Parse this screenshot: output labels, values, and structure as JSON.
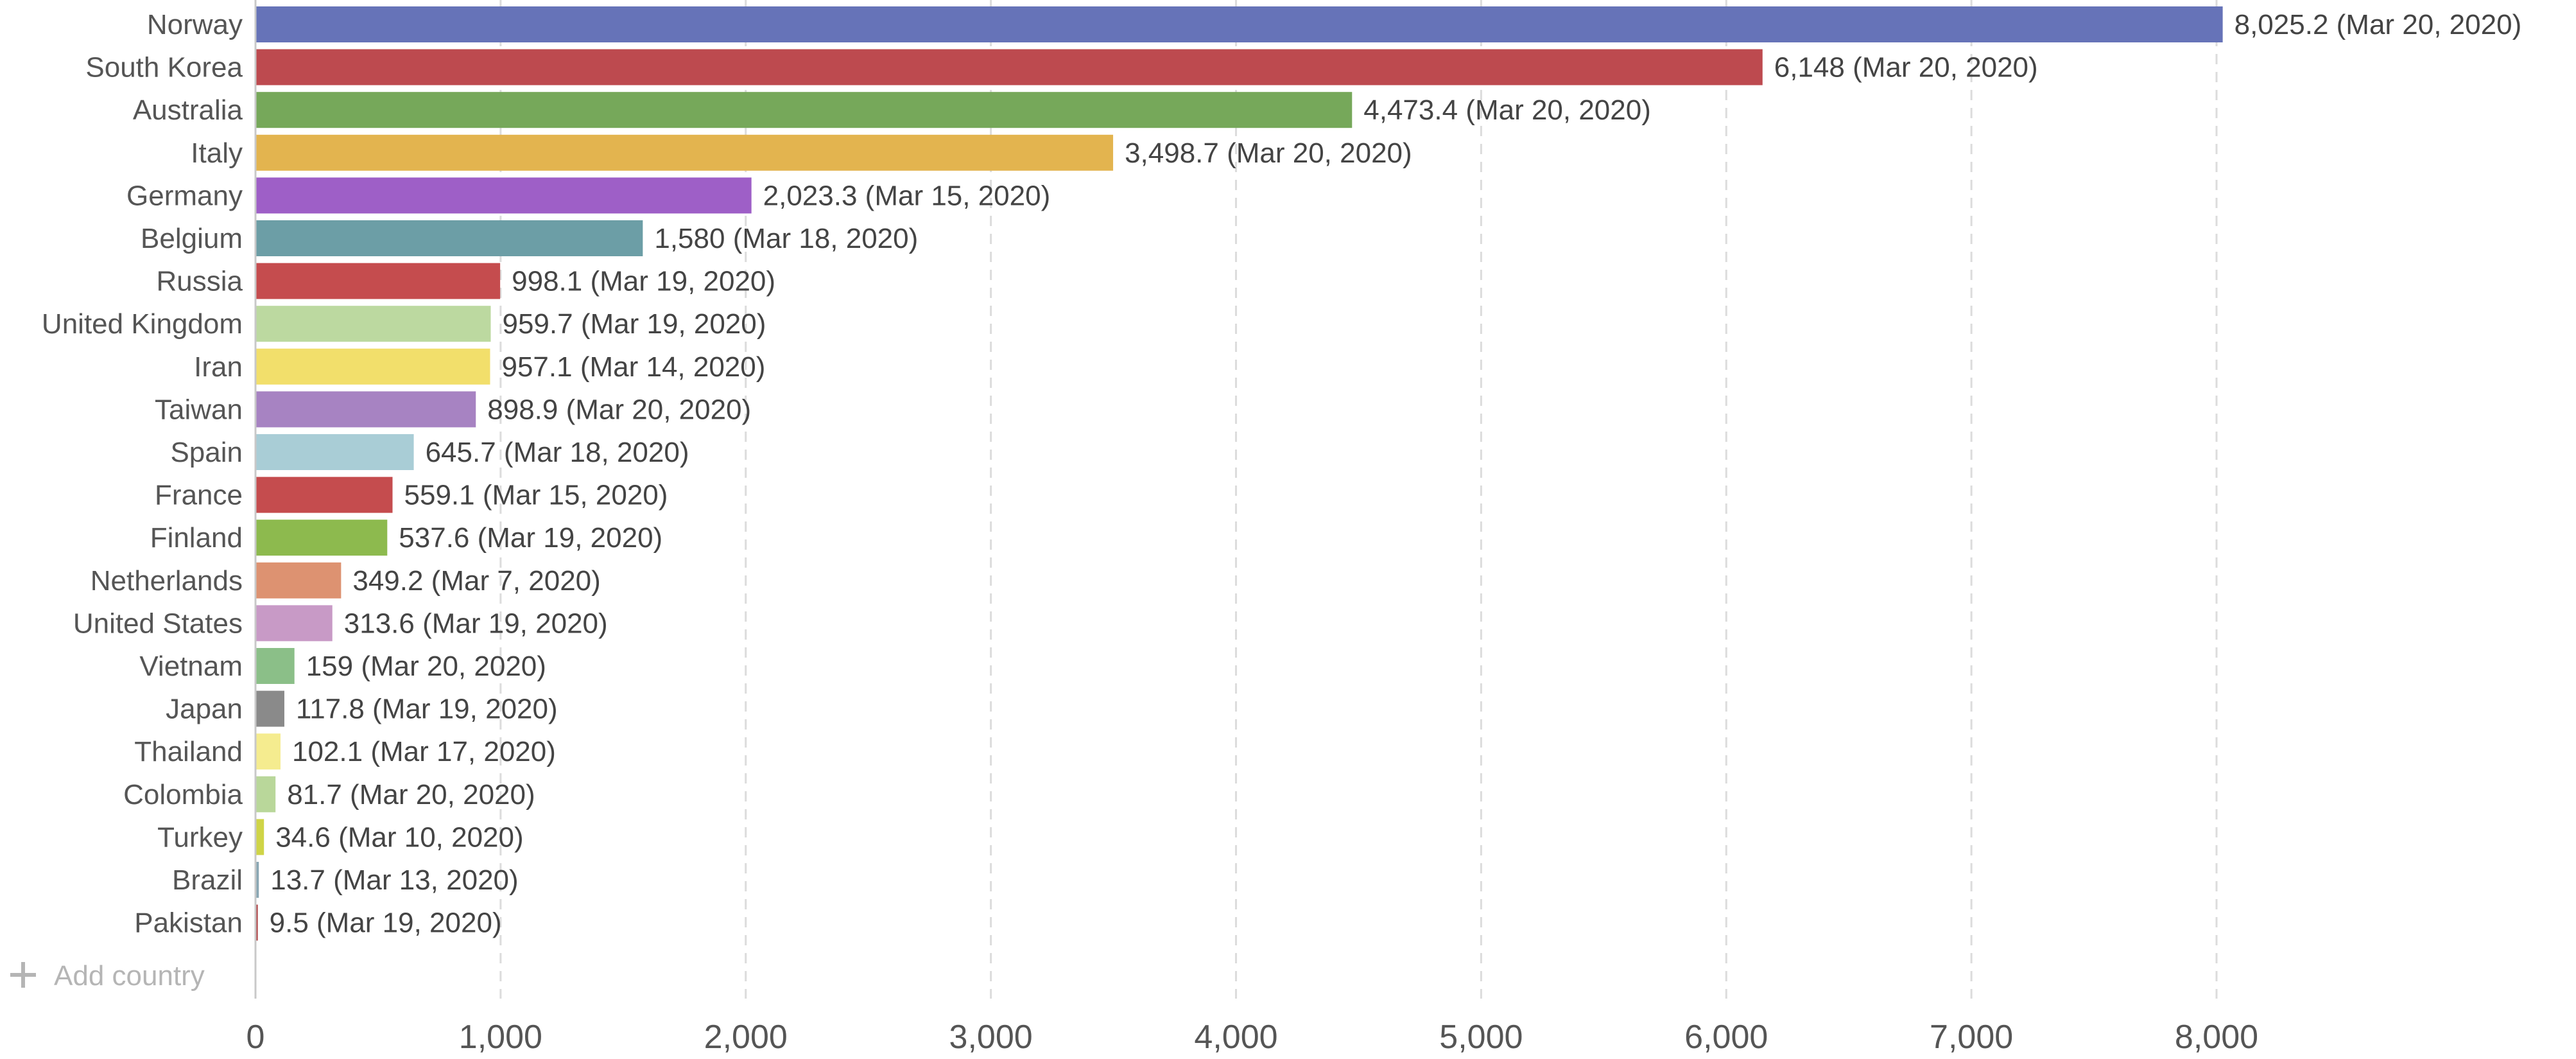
{
  "chart_data": {
    "type": "bar",
    "orientation": "horizontal",
    "categories": [
      "Norway",
      "South Korea",
      "Australia",
      "Italy",
      "Germany",
      "Belgium",
      "Russia",
      "United Kingdom",
      "Iran",
      "Taiwan",
      "Spain",
      "France",
      "Finland",
      "Netherlands",
      "United States",
      "Vietnam",
      "Japan",
      "Thailand",
      "Colombia",
      "Turkey",
      "Brazil",
      "Pakistan"
    ],
    "values": [
      8025.2,
      6148,
      4473.4,
      3498.7,
      2023.3,
      1580,
      998.1,
      959.7,
      957.1,
      898.9,
      645.7,
      559.1,
      537.6,
      349.2,
      313.6,
      159,
      117.8,
      102.1,
      81.7,
      34.6,
      13.7,
      9.5
    ],
    "value_labels": [
      "8,025.2 (Mar 20, 2020)",
      "6,148 (Mar 20, 2020)",
      "4,473.4 (Mar 20, 2020)",
      "3,498.7 (Mar 20, 2020)",
      "2,023.3 (Mar 15, 2020)",
      "1,580 (Mar 18, 2020)",
      "998.1 (Mar 19, 2020)",
      "959.7 (Mar 19, 2020)",
      "957.1 (Mar 14, 2020)",
      "898.9 (Mar 20, 2020)",
      "645.7 (Mar 18, 2020)",
      "559.1 (Mar 15, 2020)",
      "537.6 (Mar 19, 2020)",
      "349.2 (Mar 7, 2020)",
      "313.6 (Mar 19, 2020)",
      "159 (Mar 20, 2020)",
      "117.8 (Mar 19, 2020)",
      "102.1 (Mar 17, 2020)",
      "81.7 (Mar 20, 2020)",
      "34.6 (Mar 10, 2020)",
      "13.7 (Mar 13, 2020)",
      "9.5 (Mar 19, 2020)"
    ],
    "colors": [
      "#6673b8",
      "#bd4a4f",
      "#76a85a",
      "#e3b44f",
      "#9e5fc7",
      "#6c9ea6",
      "#c54c4e",
      "#bcd9a0",
      "#f2df6b",
      "#a783c2",
      "#a9cdd6",
      "#c54c4e",
      "#8dba4e",
      "#dd9271",
      "#c89ac6",
      "#8bbf88",
      "#8a8a8a",
      "#f5ec8f",
      "#b9d79a",
      "#cfd447",
      "#8aa7b4",
      "#b04548"
    ],
    "xlim": [
      0,
      8000
    ],
    "xticks": [
      0,
      1000,
      2000,
      3000,
      4000,
      5000,
      6000,
      7000,
      8000
    ],
    "xtick_labels": [
      "0",
      "1,000",
      "2,000",
      "3,000",
      "4,000",
      "5,000",
      "6,000",
      "7,000",
      "8,000"
    ],
    "grid": "vertical-dashed",
    "title": "",
    "xlabel": "",
    "ylabel": ""
  },
  "controls": {
    "add_country_label": "Add country",
    "add_country_icon": "plus-icon"
  }
}
